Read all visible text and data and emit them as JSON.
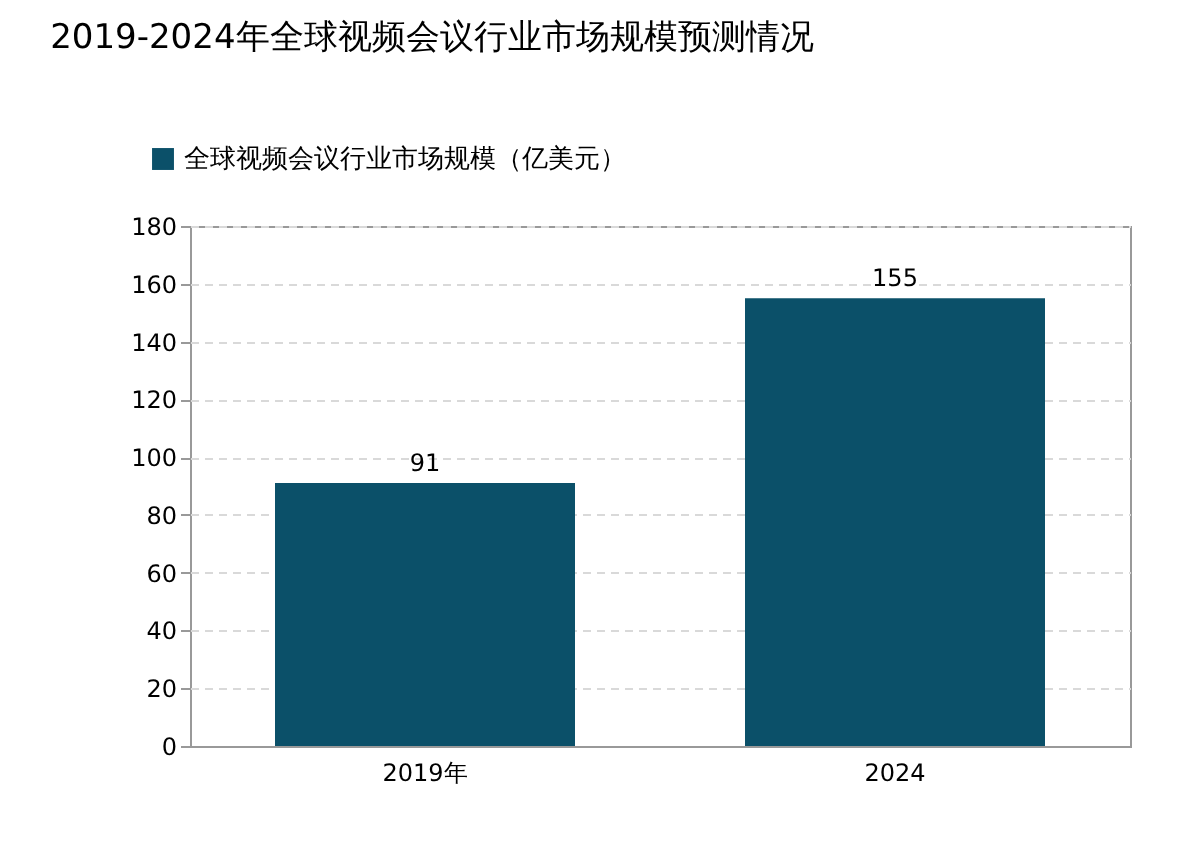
{
  "chart_data": {
    "type": "bar",
    "title": "2019-2024年全球视频会议行业市场规模预测情况",
    "categories": [
      "2019年",
      "2024"
    ],
    "series": [
      {
        "name": "全球视频会议行业市场规模（亿美元）",
        "color": "#0b5069",
        "values": [
          91,
          155
        ]
      }
    ],
    "ylim": [
      0,
      180
    ],
    "yticks": [
      0,
      20,
      40,
      60,
      80,
      100,
      120,
      140,
      160,
      180
    ],
    "grid": "y",
    "legend": "top left",
    "data_labels": true
  }
}
